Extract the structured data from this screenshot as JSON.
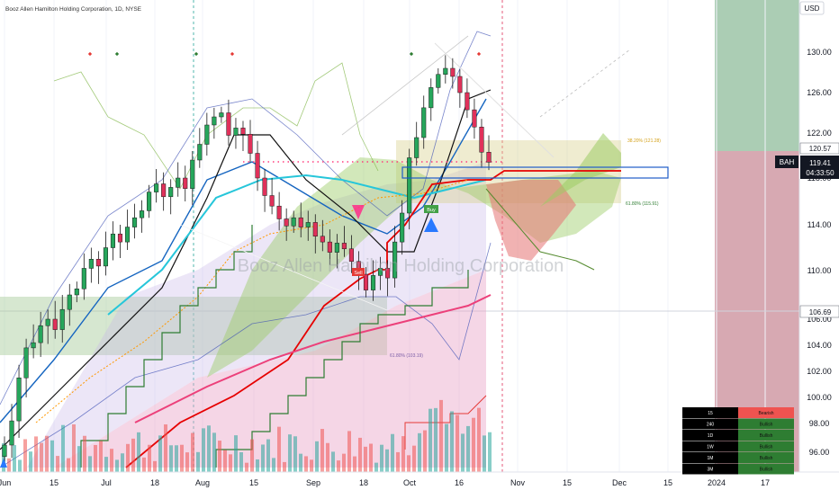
{
  "header": {
    "title": "Booz Allen Hamilton Holding Corporation, 1D, NYSE"
  },
  "watermark": "Booz Allen Hamilton Holding Corporation",
  "currency_button": "USD",
  "price_tags": {
    "upper": "120.57",
    "symbol": "BAH",
    "last": "119.41",
    "countdown": "04:33:50",
    "level": "106.69"
  },
  "annotations": {
    "fib_top": "38.20% (121.28)",
    "fib_mid": "61.80% (115.91)",
    "fib_low": "61.80% (103.19)",
    "buy": "Buy",
    "sell": "Sell"
  },
  "trend_table": [
    {
      "tf": "15",
      "status": "Bearish"
    },
    {
      "tf": "240",
      "status": "Bullish"
    },
    {
      "tf": "1D",
      "status": "Bullish"
    },
    {
      "tf": "1W",
      "status": "Bullish"
    },
    {
      "tf": "1M",
      "status": "Bullish"
    },
    {
      "tf": "3M",
      "status": "Bullish"
    }
  ],
  "colors": {
    "bull": "#26a65b",
    "bear": "#e0315a",
    "cloud_bull": "#9ccc65",
    "cloud_bear": "#e57373",
    "zone_upper": "#8fbc9b",
    "zone_lower": "#c98c98"
  },
  "chart_data": {
    "type": "candlestick",
    "title": "Booz Allen Hamilton Holding Corporation, 1D, NYSE",
    "currency": "USD",
    "last_price": 119.41,
    "ylim": [
      94,
      132
    ],
    "y_ticks": [
      96.0,
      98.0,
      100.0,
      102.0,
      104.0,
      106.0,
      110.0,
      114.0,
      118.0,
      122.0,
      126.0,
      130.0
    ],
    "y_tick_labels": [
      "96.00",
      "98.00",
      "100.00",
      "102.00",
      "104.00",
      "106.00",
      "110.00",
      "114.00",
      "118.00",
      "122.00",
      "126.00",
      "130.00"
    ],
    "x_ticks": [
      "Jun",
      "15",
      "Jul",
      "18",
      "Aug",
      "15",
      "Sep",
      "18",
      "Oct",
      "16",
      "Nov",
      "15",
      "Dec",
      "15",
      "2024",
      "17"
    ],
    "candles_approx": {
      "description": "approximate daily OHLC read from chart",
      "closes": [
        96.5,
        98.2,
        101.5,
        103.8,
        104.2,
        105.5,
        106.0,
        105.2,
        106.8,
        108.0,
        108.5,
        110.2,
        111.0,
        110.4,
        112.0,
        113.2,
        112.5,
        113.8,
        114.6,
        115.2,
        116.8,
        117.5,
        116.4,
        117.2,
        118.0,
        117.1,
        119.6,
        121.0,
        122.8,
        123.6,
        124.0,
        121.8,
        122.5,
        121.9,
        120.2,
        118.0,
        116.5,
        115.6,
        114.5,
        113.9,
        114.6,
        113.8,
        114.2,
        113.0,
        112.5,
        111.6,
        112.4,
        111.9,
        110.8,
        109.7,
        108.4,
        109.6,
        110.2,
        109.4,
        112.5,
        115.0,
        119.8,
        121.6,
        124.5,
        126.5,
        127.8,
        128.4,
        127.6,
        126.0,
        124.3,
        122.6,
        120.3,
        119.41
      ]
    },
    "levels": {
      "horizontal_line": 106.69,
      "price_tag": 120.57,
      "fib_levels": [
        121.28,
        115.91,
        103.19
      ]
    },
    "buy_signal_near": "Oct",
    "sell_signal_near": "Sep 18"
  }
}
